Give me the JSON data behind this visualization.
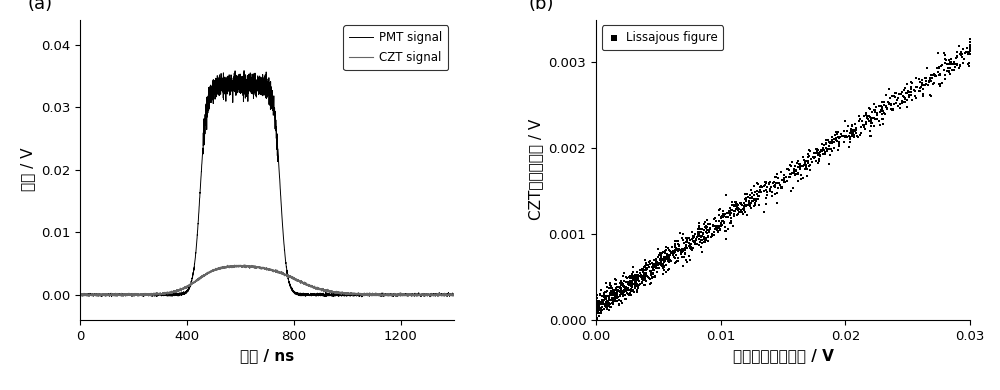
{
  "panel_a": {
    "label": "(a)",
    "xlabel": "时间 / ns",
    "ylabel": "信号 / V",
    "xlim": [
      0,
      1400
    ],
    "ylim": [
      -0.004,
      0.044
    ],
    "yticks": [
      0.0,
      0.01,
      0.02,
      0.03,
      0.04
    ],
    "xticks": [
      0,
      400,
      800,
      1200
    ],
    "pmt_color": "#000000",
    "czt_color": "#666666",
    "pmt_label": "PMT signal",
    "czt_label": "CZT signal"
  },
  "panel_b": {
    "label": "(b)",
    "xlabel": "倍增管探测器信号 / V",
    "ylabel": "CZT探测器信号 / V",
    "xlim": [
      0.0,
      0.03
    ],
    "ylim": [
      0.0,
      0.0035
    ],
    "xticks": [
      0.0,
      0.01,
      0.02,
      0.03
    ],
    "yticks": [
      0.0,
      0.001,
      0.002,
      0.003
    ],
    "scatter_color": "#000000",
    "scatter_label": "Lissajous figure"
  }
}
